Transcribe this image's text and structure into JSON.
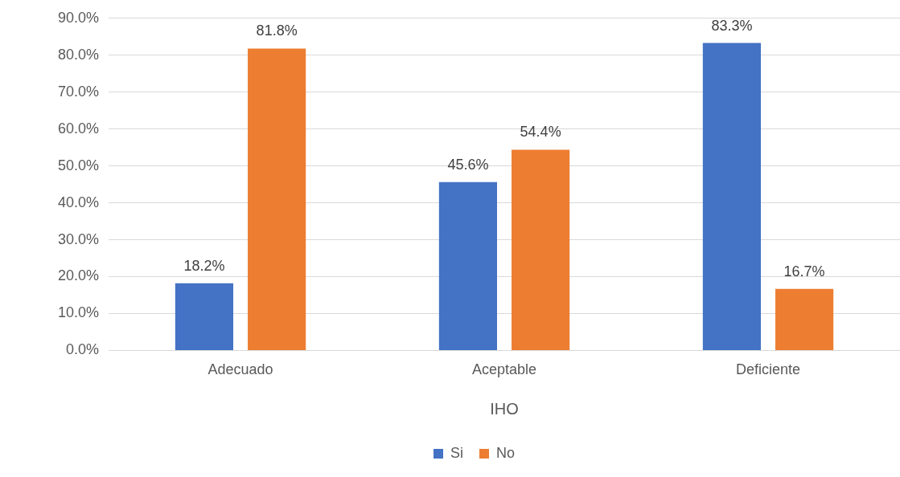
{
  "chart_data": {
    "type": "bar",
    "xlabel": "IHO",
    "categories": [
      "Adecuado",
      "Aceptable",
      "Deficiente"
    ],
    "series": [
      {
        "name": "Si",
        "color": "#4472c4",
        "values": [
          18.2,
          45.6,
          83.3
        ],
        "value_labels": [
          "18.2%",
          "45.6%",
          "83.3%"
        ]
      },
      {
        "name": "No",
        "color": "#ed7d31",
        "values": [
          81.8,
          54.4,
          16.7
        ],
        "value_labels": [
          "81.8%",
          "54.4%",
          "16.7%"
        ]
      }
    ],
    "ylim": [
      0,
      90
    ],
    "yticks": [
      {
        "value": 0,
        "label": "0.0%"
      },
      {
        "value": 10,
        "label": "10.0%"
      },
      {
        "value": 20,
        "label": "20.0%"
      },
      {
        "value": 30,
        "label": "30.0%"
      },
      {
        "value": 40,
        "label": "40.0%"
      },
      {
        "value": 50,
        "label": "50.0%"
      },
      {
        "value": 60,
        "label": "60.0%"
      },
      {
        "value": 70,
        "label": "70.0%"
      },
      {
        "value": 80,
        "label": "80.0%"
      },
      {
        "value": 90,
        "label": "90.0%"
      }
    ],
    "grid": "y",
    "legend": "bottom"
  }
}
